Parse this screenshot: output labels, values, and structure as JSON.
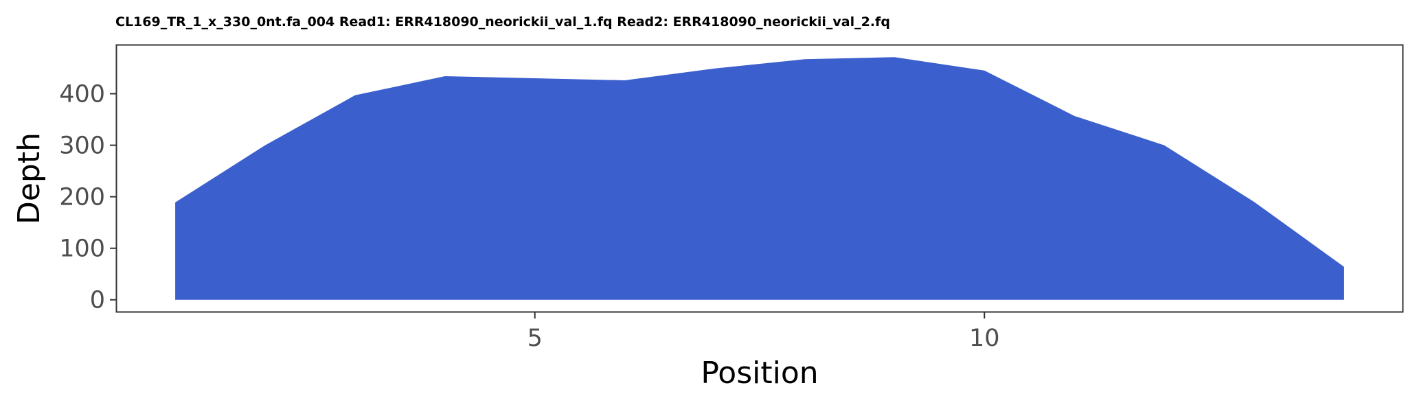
{
  "chart_data": {
    "type": "area",
    "title": "CL169_TR_1_x_330_0nt.fa_004 Read1: ERR418090_neorickii_val_1.fq Read2: ERR418090_neorickii_val_2.fq",
    "xlabel": "Position",
    "ylabel": "Depth",
    "x": [
      1,
      2,
      3,
      4,
      5,
      6,
      7,
      8,
      9,
      10,
      11,
      12,
      13,
      14
    ],
    "series": [
      {
        "name": "Depth",
        "values": [
          189,
          300,
          397,
          434,
          430,
          426,
          449,
          467,
          471,
          445,
          357,
          300,
          190,
          64
        ]
      }
    ],
    "xlim": [
      0.35,
      14.65
    ],
    "ylim": [
      -23,
      494
    ],
    "x_ticks": [
      5,
      10
    ],
    "x_tick_labels": [
      "5",
      "10"
    ],
    "y_ticks": [
      0,
      100,
      200,
      300,
      400
    ],
    "y_tick_labels": [
      "0",
      "100",
      "200",
      "300",
      "400"
    ],
    "fill_color": "#3b5fcd",
    "grid": false,
    "legend": "none"
  }
}
